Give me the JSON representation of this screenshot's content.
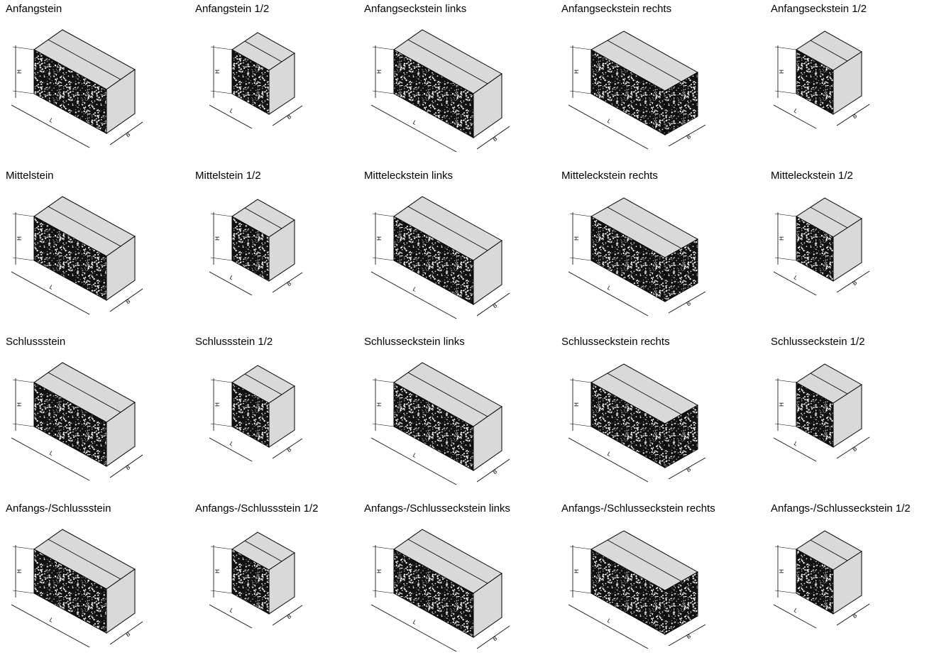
{
  "items": [
    {
      "title": "Anfangstein"
    },
    {
      "title": "Anfangstein 1/2"
    },
    {
      "title": "Anfangseckstein links"
    },
    {
      "title": "Anfangseckstein rechts"
    },
    {
      "title": "Anfangseckstein 1/2"
    },
    {
      "title": "Mittelstein"
    },
    {
      "title": "Mittelstein 1/2"
    },
    {
      "title": "Mitteleckstein links"
    },
    {
      "title": "Mitteleckstein rechts"
    },
    {
      "title": "Mitteleckstein 1/2"
    },
    {
      "title": "Schlussstein"
    },
    {
      "title": "Schlussstein 1/2"
    },
    {
      "title": "Schlusseckstein links"
    },
    {
      "title": "Schlusseckstein rechts"
    },
    {
      "title": "Schlusseckstein 1/2"
    },
    {
      "title": "Anfangs-/Schlussstein"
    },
    {
      "title": "Anfangs-/Schlussstein 1/2"
    },
    {
      "title": "Anfangs-/Schlusseckstein links"
    },
    {
      "title": "Anfangs-/Schlusseckstein rechts"
    },
    {
      "title": "Anfangs-/Schlusseckstein 1/2"
    }
  ],
  "dimension_labels": {
    "height": "H",
    "length": "L",
    "width": "B"
  }
}
